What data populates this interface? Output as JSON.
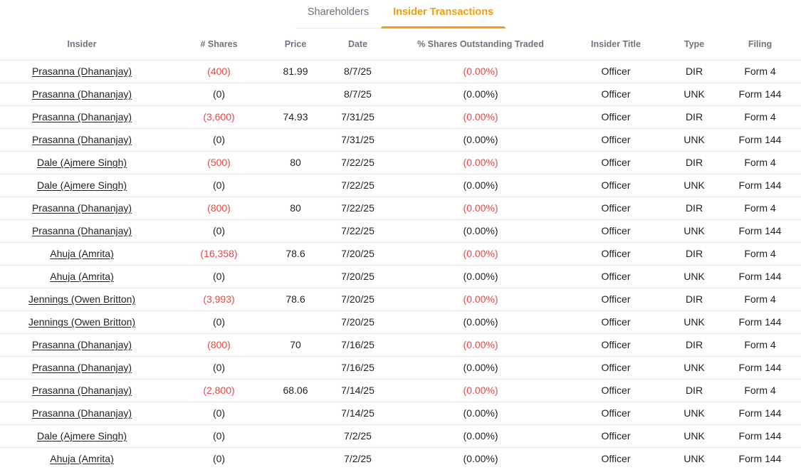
{
  "tabs": [
    {
      "label": "Shareholders",
      "active": false
    },
    {
      "label": "Insider Transactions",
      "active": true
    }
  ],
  "colors": {
    "accent_orange": "#f59e0b",
    "negative_red": "#ef4444",
    "header_gray": "#6e7480",
    "text_dark": "#1c2026",
    "row_border": "#e4e6ea"
  },
  "table": {
    "columns": [
      "Insider",
      "# Shares",
      "Price",
      "Date",
      "% Shares Outstanding Traded",
      "Insider Title",
      "Type",
      "Filing"
    ],
    "rows": [
      {
        "insider": "Prasanna (Dhananjay)",
        "shares": "(400)",
        "price": "81.99",
        "date": "8/7/25",
        "pct": "(0.00%)",
        "title": "Officer",
        "type": "DIR",
        "filing": "Form 4",
        "negative": true
      },
      {
        "insider": "Prasanna (Dhananjay)",
        "shares": "(0)",
        "price": "",
        "date": "8/7/25",
        "pct": "(0.00%)",
        "title": "Officer",
        "type": "UNK",
        "filing": "Form 144",
        "negative": false
      },
      {
        "insider": "Prasanna (Dhananjay)",
        "shares": "(3,600)",
        "price": "74.93",
        "date": "7/31/25",
        "pct": "(0.00%)",
        "title": "Officer",
        "type": "DIR",
        "filing": "Form 4",
        "negative": true
      },
      {
        "insider": "Prasanna (Dhananjay)",
        "shares": "(0)",
        "price": "",
        "date": "7/31/25",
        "pct": "(0.00%)",
        "title": "Officer",
        "type": "UNK",
        "filing": "Form 144",
        "negative": false
      },
      {
        "insider": "Dale (Ajmere Singh)",
        "shares": "(500)",
        "price": "80",
        "date": "7/22/25",
        "pct": "(0.00%)",
        "title": "Officer",
        "type": "DIR",
        "filing": "Form 4",
        "negative": true
      },
      {
        "insider": "Dale (Ajmere Singh)",
        "shares": "(0)",
        "price": "",
        "date": "7/22/25",
        "pct": "(0.00%)",
        "title": "Officer",
        "type": "UNK",
        "filing": "Form 144",
        "negative": false
      },
      {
        "insider": "Prasanna (Dhananjay)",
        "shares": "(800)",
        "price": "80",
        "date": "7/22/25",
        "pct": "(0.00%)",
        "title": "Officer",
        "type": "DIR",
        "filing": "Form 4",
        "negative": true
      },
      {
        "insider": "Prasanna (Dhananjay)",
        "shares": "(0)",
        "price": "",
        "date": "7/22/25",
        "pct": "(0.00%)",
        "title": "Officer",
        "type": "UNK",
        "filing": "Form 144",
        "negative": false
      },
      {
        "insider": "Ahuja (Amrita)",
        "shares": "(16,358)",
        "price": "78.6",
        "date": "7/20/25",
        "pct": "(0.00%)",
        "title": "Officer",
        "type": "DIR",
        "filing": "Form 4",
        "negative": true
      },
      {
        "insider": "Ahuja (Amrita)",
        "shares": "(0)",
        "price": "",
        "date": "7/20/25",
        "pct": "(0.00%)",
        "title": "Officer",
        "type": "UNK",
        "filing": "Form 144",
        "negative": false
      },
      {
        "insider": "Jennings (Owen Britton)",
        "shares": "(3,993)",
        "price": "78.6",
        "date": "7/20/25",
        "pct": "(0.00%)",
        "title": "Officer",
        "type": "DIR",
        "filing": "Form 4",
        "negative": true
      },
      {
        "insider": "Jennings (Owen Britton)",
        "shares": "(0)",
        "price": "",
        "date": "7/20/25",
        "pct": "(0.00%)",
        "title": "Officer",
        "type": "UNK",
        "filing": "Form 144",
        "negative": false
      },
      {
        "insider": "Prasanna (Dhananjay)",
        "shares": "(800)",
        "price": "70",
        "date": "7/16/25",
        "pct": "(0.00%)",
        "title": "Officer",
        "type": "DIR",
        "filing": "Form 4",
        "negative": true
      },
      {
        "insider": "Prasanna (Dhananjay)",
        "shares": "(0)",
        "price": "",
        "date": "7/16/25",
        "pct": "(0.00%)",
        "title": "Officer",
        "type": "UNK",
        "filing": "Form 144",
        "negative": false
      },
      {
        "insider": "Prasanna (Dhananjay)",
        "shares": "(2,800)",
        "price": "68.06",
        "date": "7/14/25",
        "pct": "(0.00%)",
        "title": "Officer",
        "type": "DIR",
        "filing": "Form 4",
        "negative": true
      },
      {
        "insider": "Prasanna (Dhananjay)",
        "shares": "(0)",
        "price": "",
        "date": "7/14/25",
        "pct": "(0.00%)",
        "title": "Officer",
        "type": "UNK",
        "filing": "Form 144",
        "negative": false
      },
      {
        "insider": "Dale (Ajmere Singh)",
        "shares": "(0)",
        "price": "",
        "date": "7/2/25",
        "pct": "(0.00%)",
        "title": "Officer",
        "type": "UNK",
        "filing": "Form 144",
        "negative": false
      },
      {
        "insider": "Ahuja (Amrita)",
        "shares": "(0)",
        "price": "",
        "date": "7/2/25",
        "pct": "(0.00%)",
        "title": "Officer",
        "type": "UNK",
        "filing": "Form 144",
        "negative": false
      }
    ]
  }
}
